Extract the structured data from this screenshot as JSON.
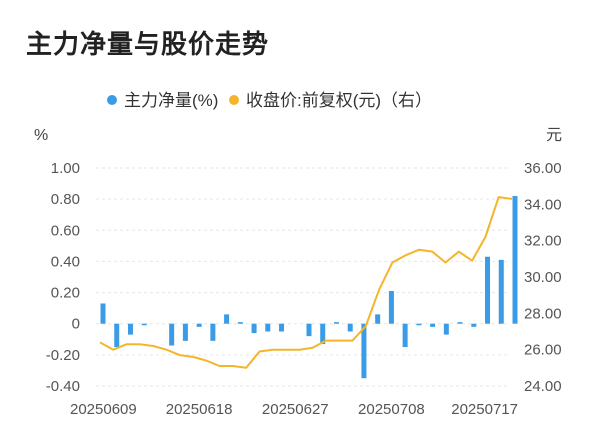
{
  "page": {
    "title": "主力净量与股价走势"
  },
  "chart_data": {
    "type": "bar+line",
    "title": "主力净量与股价走势",
    "legend": [
      "主力净量(%)",
      "收盘价:前复权(元)（右）"
    ],
    "left_axis": {
      "unit": "%",
      "min": -0.4,
      "max": 1.0,
      "ticks": [
        "1.00",
        "0.80",
        "0.60",
        "0.40",
        "0.20",
        "0",
        "-0.20",
        "-0.40"
      ]
    },
    "right_axis": {
      "unit": "元",
      "min": 24.0,
      "max": 36.0,
      "ticks": [
        "36.00",
        "34.00",
        "32.00",
        "30.00",
        "28.00",
        "26.00",
        "24.00"
      ]
    },
    "x_labels": [
      "20250609",
      "20250618",
      "20250627",
      "20250708",
      "20250717"
    ],
    "x_label_index": [
      0,
      7,
      14,
      21,
      28
    ],
    "series": [
      {
        "name": "主力净量(%)",
        "type": "bar",
        "color": "#3a9be6",
        "values": [
          0.13,
          -0.15,
          -0.07,
          -0.01,
          0,
          -0.14,
          -0.11,
          -0.02,
          -0.11,
          0.06,
          0.01,
          -0.06,
          -0.05,
          -0.05,
          0,
          -0.08,
          -0.13,
          0.01,
          -0.05,
          -0.35,
          0.06,
          0.21,
          -0.15,
          -0.01,
          -0.02,
          -0.07,
          0.01,
          -0.02,
          0.43,
          0.41,
          0.82
        ]
      },
      {
        "name": "收盘价:前复权(元)（右）",
        "type": "line",
        "color": "#f5b52b",
        "values": [
          26.4,
          26.0,
          26.3,
          26.3,
          26.2,
          26.0,
          25.7,
          25.6,
          25.4,
          25.1,
          25.1,
          25.0,
          25.9,
          26.0,
          26.0,
          26.0,
          26.1,
          26.5,
          26.5,
          26.5,
          27.3,
          29.3,
          30.8,
          31.2,
          31.5,
          31.4,
          30.8,
          31.4,
          30.9,
          32.2,
          34.4,
          34.3
        ]
      }
    ]
  }
}
